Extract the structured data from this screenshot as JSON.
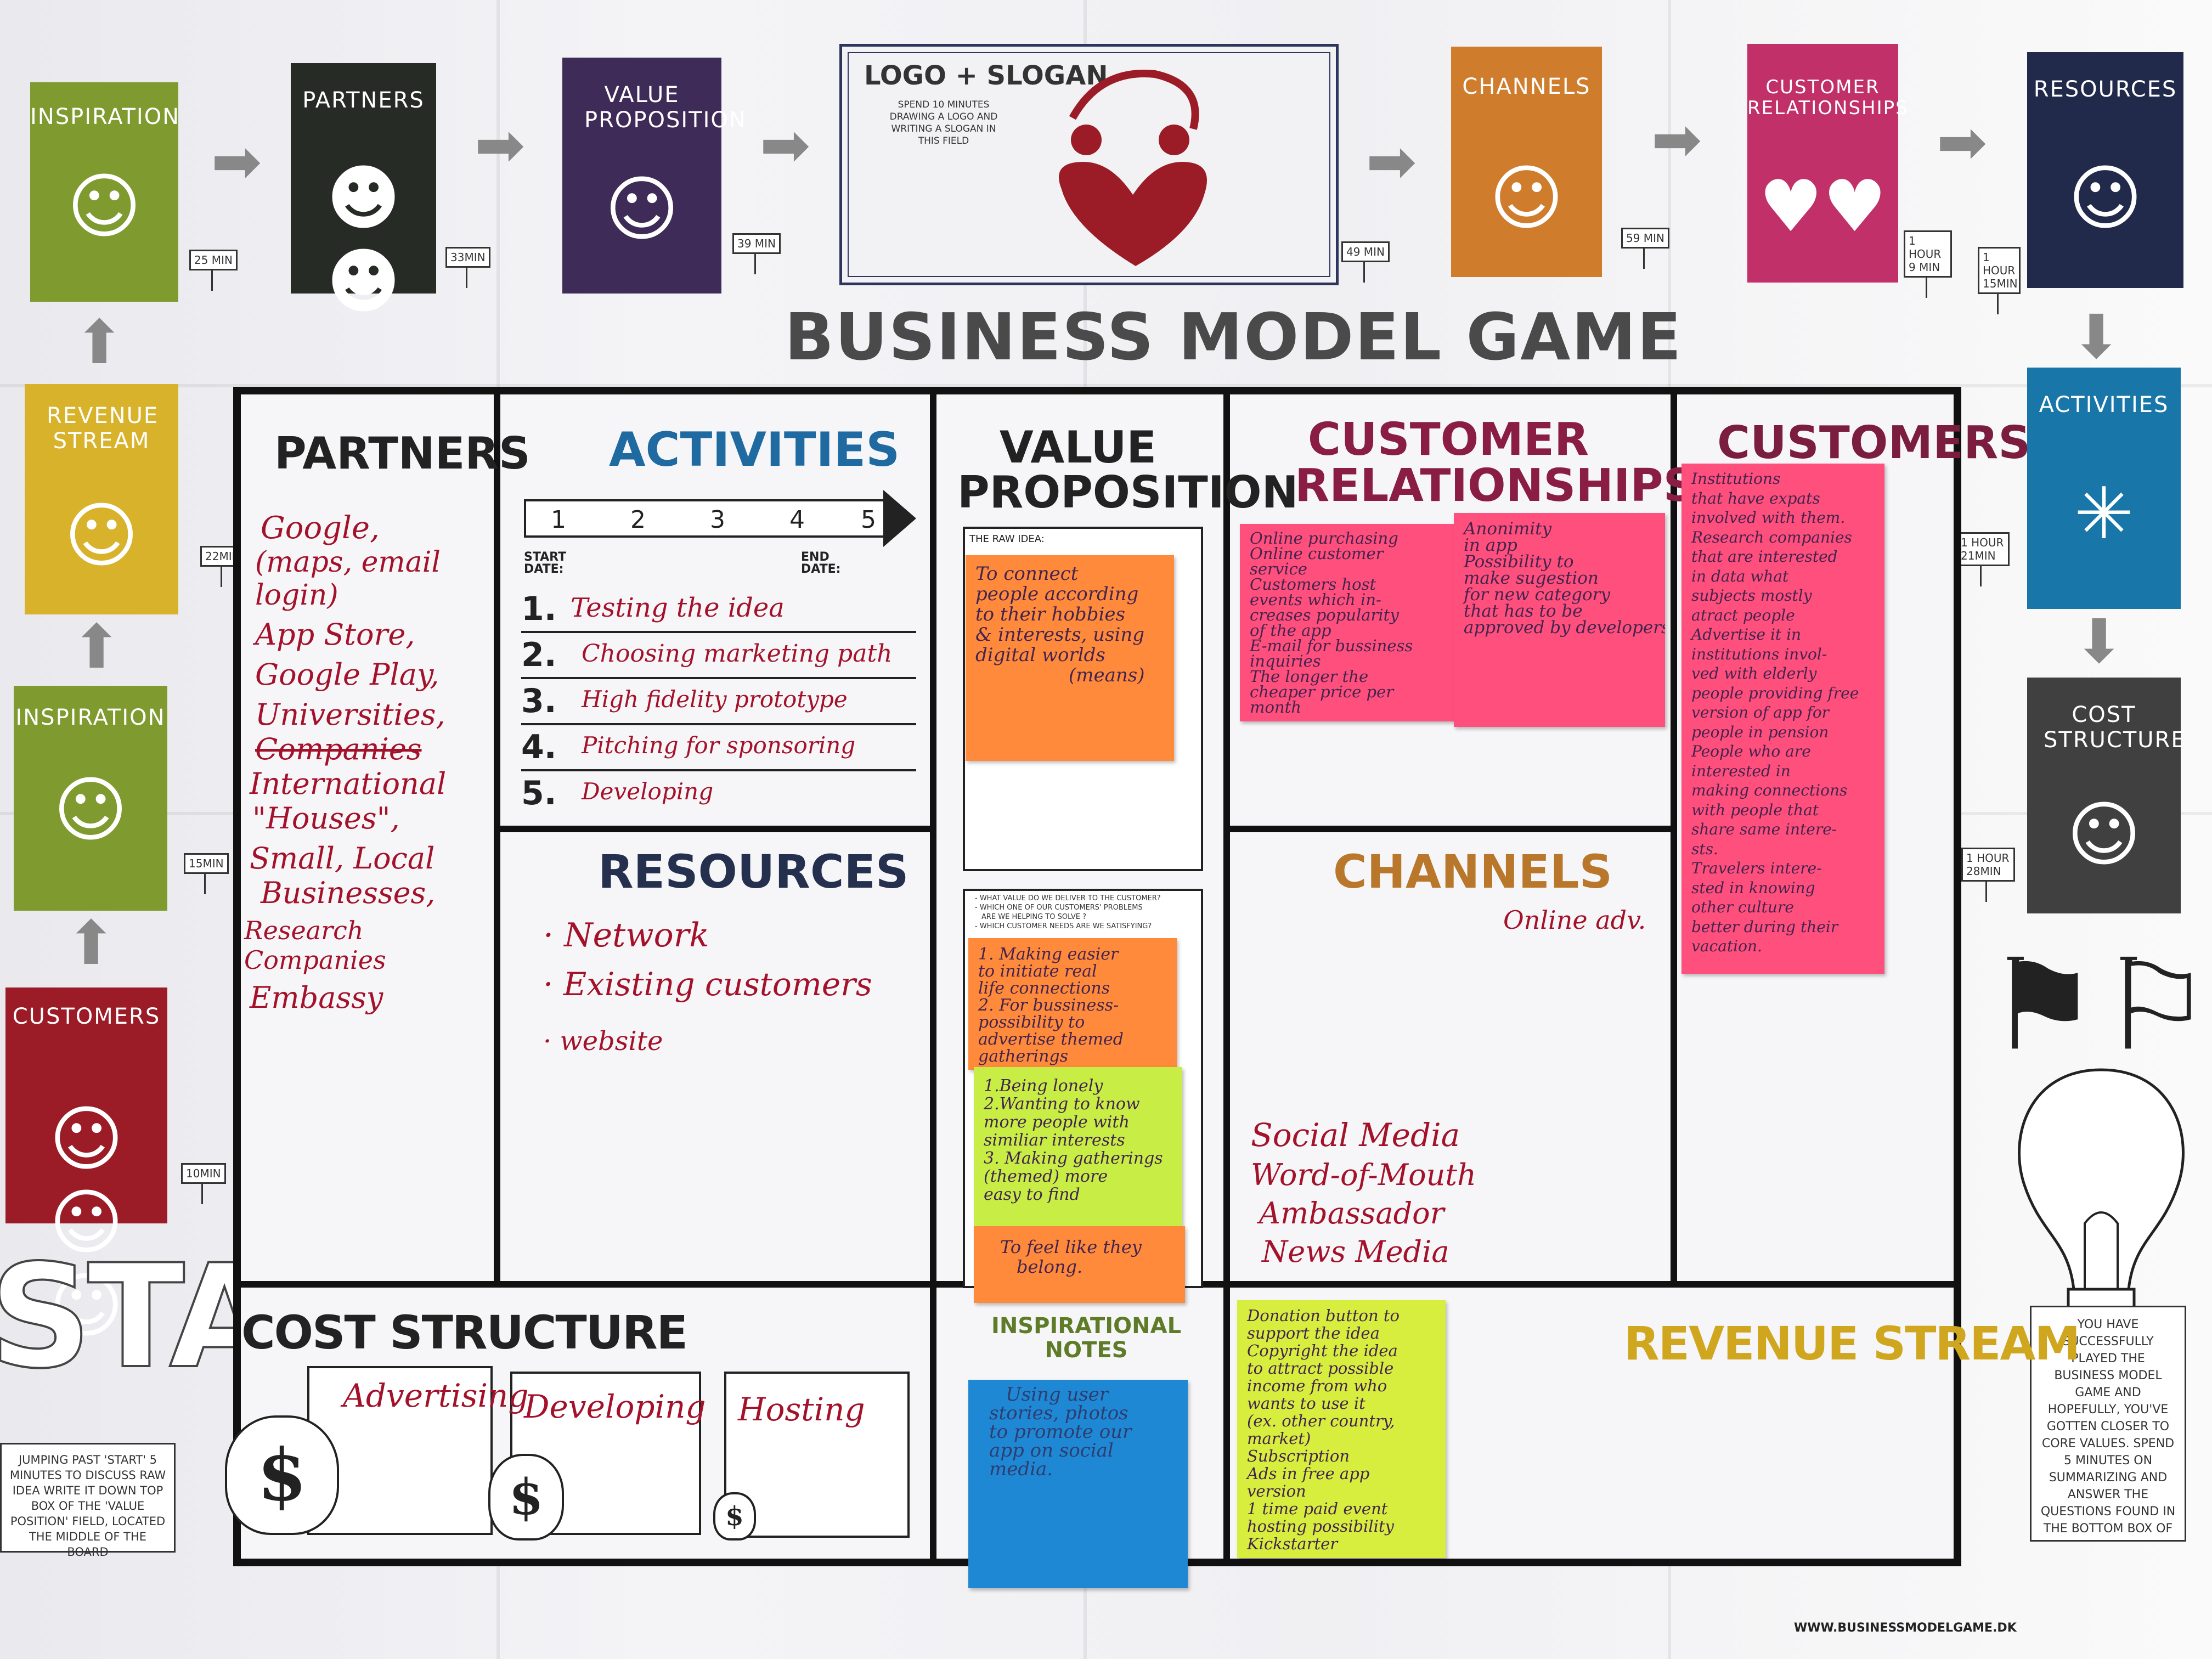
{
  "colors": {
    "green": "#7f9a2f",
    "dark": "#262b25",
    "purple": "#3f2b57",
    "orange": "#cf7c2c",
    "magenta": "#c2306a",
    "navy": "#222a4c",
    "blue": "#1976a8",
    "darkgray": "#3f403f",
    "red": "#9b1c27",
    "pink": "#ff4f7c",
    "sticky_orange": "#ff8a3b",
    "sticky_green": "#c8ee45",
    "sticky_blue": "#1e88d4",
    "sticky_yellow": "#d8ee3e"
  },
  "cards": {
    "inspiration_top": "INSPIRATION",
    "partners": "PARTNERS",
    "value_proposition": "VALUE PROPOSITION",
    "channels": "CHANNELS",
    "customer_relationships": "CUSTOMER RELATIONSHIPS",
    "resources": "RESOURCES",
    "revenue_stream": "REVENUE STREAM",
    "inspiration_mid": "INSPIRATION",
    "customers": "CUSTOMERS",
    "activities": "ACTIVITIES",
    "cost_structure": "COST STRUCTURE"
  },
  "time_signs": {
    "t25": "25 MIN",
    "t33": "33MIN",
    "t39": "39 MIN",
    "t49": "49 MIN",
    "t59": "59 MIN",
    "t1h9": "1 HOUR 9 MIN",
    "t1h15": "1 HOUR 15MIN",
    "t22": "22MIN",
    "t15": "15MIN",
    "t10": "10MIN",
    "t1h21": "1 HOUR 21MIN",
    "t1h28": "1 HOUR 28MIN"
  },
  "logo_slogan": {
    "title": "LOGO + SLOGAN",
    "text": "SPEND 10 MINUTES DRAWING A LOGO AND WRITING A SLOGAN IN THIS FIELD"
  },
  "game_title": "BUSINESS MODEL GAME",
  "canvas": {
    "partners": {
      "heading": "PARTNERS",
      "items": [
        "Google,",
        "(maps, email login)",
        "App Store,",
        "Google Play,",
        "Universities,",
        "Companies",
        "International",
        "\"Houses\",",
        "Small, Local",
        "Businesses,",
        "Research Companies",
        "Embassy"
      ]
    },
    "activities": {
      "heading": "ACTIVITIES",
      "steps": [
        "1",
        "2",
        "3",
        "4",
        "5"
      ],
      "start_label": "START DATE:",
      "end_label": "END DATE:",
      "list": [
        "Testing the idea",
        "Choosing marketing path",
        "High fidelity prototype",
        "Pitching for sponsoring",
        "Developing"
      ]
    },
    "value_proposition": {
      "heading": "VALUE PROPOSITION",
      "raw_idea_label": "THE RAW IDEA:",
      "raw_idea": [
        "To connect",
        "people according",
        "to their hobbies",
        "& interests, using",
        "digital worlds",
        "(means)"
      ],
      "questions": [
        "- WHAT VALUE DO WE DELIVER TO THE CUSTOMER?",
        "- WHICH ONE OF OUR CUSTOMERS' PROBLEMS",
        "ARE WE HELPING TO SOLVE ?",
        "- WHICH CUSTOMER NEEDS ARE WE SATISFYING?"
      ],
      "note_orange": [
        "1. Making easier",
        "to initiate real",
        "life connections",
        "2. For bussiness-",
        "possibility to",
        "advertise themed",
        "gatherings"
      ],
      "note_green": [
        "1.Being lonely",
        "2.Wanting to know",
        "more people with",
        "similiar interests",
        "3. Making gatherings",
        "(themed) more",
        "easy to find"
      ],
      "note_orange2": [
        "To feel like they",
        "belong."
      ]
    },
    "customer_relationships": {
      "heading": "CUSTOMER RELATIONSHIPS",
      "note1": [
        "Online purchasing",
        "Online customer",
        "service",
        "Customers host",
        "events which in-",
        "creases popularity",
        "of the app",
        "E-mail for bussiness",
        "inquiries",
        "The longer the",
        "cheaper price per",
        "month"
      ],
      "note2": [
        "Anonimity",
        "in app",
        "Possibility to",
        "make sugestion",
        "for new category",
        "that has to be",
        "approved by developers"
      ]
    },
    "customers": {
      "heading": "CUSTOMERS",
      "note": [
        "Institutions",
        "that have expats",
        "involved with them.",
        "Research companies",
        "that are interested",
        "in data what",
        "subjects mostly",
        "atract people",
        "Advertise it in",
        "institutions invol-",
        "ved with elderly",
        "people providing free",
        "version of app for",
        "people in pension",
        "People who are",
        "interested in",
        "making connections",
        "with people that",
        "share same intere-",
        "sts.",
        "Travelers intere-",
        "sted in knowing",
        "other culture",
        "better during their",
        "vacation."
      ]
    },
    "resources": {
      "heading": "RESOURCES",
      "items": [
        "· Network",
        "· Existing customers",
        "· website"
      ]
    },
    "channels": {
      "heading": "CHANNELS",
      "top_note": "Online adv.",
      "items": [
        "Social Media",
        "Word-of-Mouth",
        "Ambassador",
        "News Media"
      ]
    },
    "cost_structure": {
      "heading": "COST STRUCTURE",
      "items": [
        "Advertising",
        "Developing",
        "Hosting"
      ]
    },
    "inspirational_notes": {
      "heading": "INSPIRATIONAL NOTES",
      "note": [
        "Using user",
        "stories, photos",
        "to promote our",
        "app on social",
        "media."
      ]
    },
    "revenue_stream": {
      "heading": "REVENUE STREAM",
      "note": [
        "Donation button to",
        "support the idea",
        "Copyright the idea",
        "to attract possible",
        "income from who",
        "wants to use it",
        "(ex. other country,",
        "market)",
        "Subscription",
        "Ads in free app",
        "version",
        "1 time paid event",
        "hosting possibility",
        "Kickstarter"
      ]
    }
  },
  "start": {
    "label": "START",
    "text": "JUMPING PAST 'START' 5 MINUTES TO DISCUSS RAW IDEA WRITE IT DOWN TOP BOX OF THE 'VALUE POSITION' FIELD, LOCATED THE MIDDLE OF THE BOARD"
  },
  "finish": {
    "text": "YOU HAVE SUCCESSFULLY PLAYED THE BUSINESS MODEL GAME AND HOPEFULLY, YOU'VE GOTTEN CLOSER TO CORE VALUES. SPEND 5 MINUTES ON SUMMARIZING AND ANSWER THE QUESTIONS FOUND IN THE BOTTOM BOX OF THE VALUE PROPOSITION FIELD"
  },
  "website": "WWW.BUSINESSMODELGAME.DK"
}
